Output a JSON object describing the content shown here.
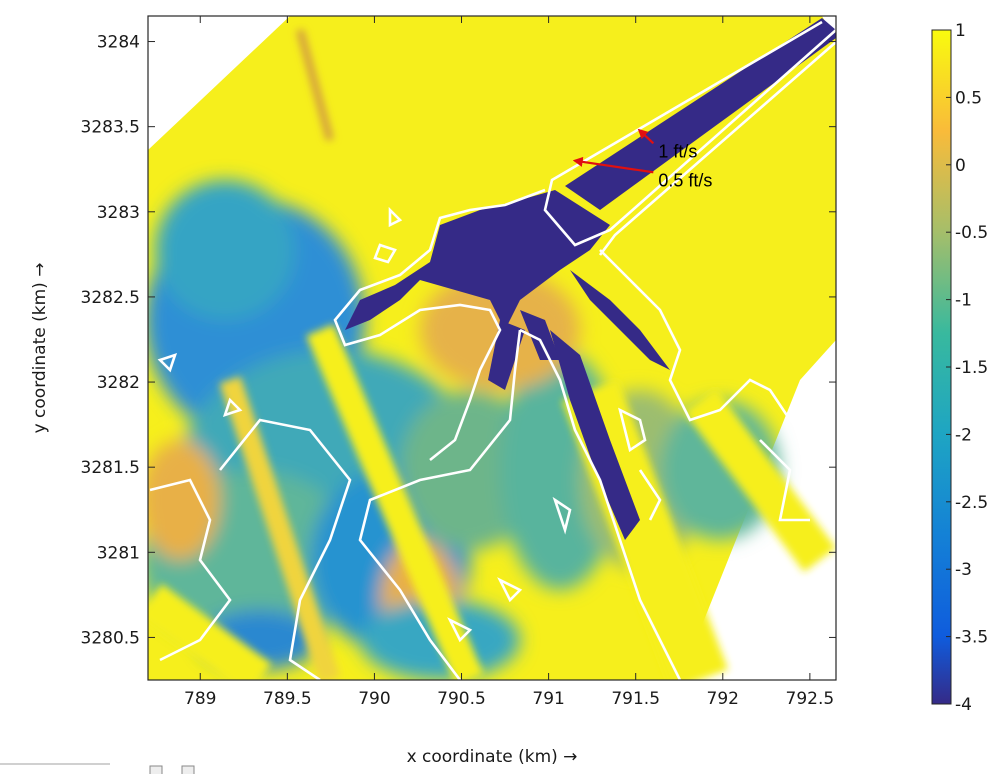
{
  "chart_data": {
    "type": "heatmap",
    "title": "",
    "xlabel": "x coordinate (km) →",
    "ylabel": "y coordinate (km) →",
    "xlim": [
      788.7,
      792.65
    ],
    "ylim": [
      3280.25,
      3284.15
    ],
    "xticks": [
      789,
      789.5,
      790,
      790.5,
      791,
      791.5,
      792,
      792.5
    ],
    "xtick_labels": [
      "789",
      "789.5",
      "790",
      "790.5",
      "791",
      "791.5",
      "792",
      "792.5"
    ],
    "yticks": [
      3280.5,
      3281,
      3281.5,
      3282,
      3282.5,
      3283,
      3283.5,
      3284
    ],
    "ytick_labels": [
      "3280.5",
      "3281",
      "3281.5",
      "3282",
      "3282.5",
      "3283",
      "3283.5",
      "3284"
    ],
    "grid": false,
    "colorbar": {
      "range": [
        -4,
        1
      ],
      "ticks": [
        1,
        0.5,
        0,
        -0.5,
        -1,
        -1.5,
        -2,
        -2.5,
        -3,
        -3.5,
        -4
      ],
      "tick_labels": [
        "1",
        "0.5",
        "0",
        "-0.5",
        "-1",
        "-1.5",
        "-2",
        "-2.5",
        "-3",
        "-3.5",
        "-4"
      ],
      "colormap": "parula",
      "colors": {
        "min": "#352a87",
        "low": "#0f5cdd",
        "mid_low": "#1a96c9",
        "mid": "#38b99e",
        "mid_high": "#a5be6a",
        "high": "#f9bb3a",
        "max": "#f9fb0e"
      }
    },
    "contour_color": "#ffffff",
    "annotations": [
      {
        "text": "1 ft/s",
        "x": 791.63,
        "y": 3283.32,
        "arrow_to": [
          791.52,
          3283.48
        ],
        "color": "#e01010"
      },
      {
        "text": "0.5 ft/s",
        "x": 791.63,
        "y": 3283.15,
        "arrow_to": [
          791.15,
          3283.3
        ],
        "color": "#e01010"
      }
    ]
  }
}
